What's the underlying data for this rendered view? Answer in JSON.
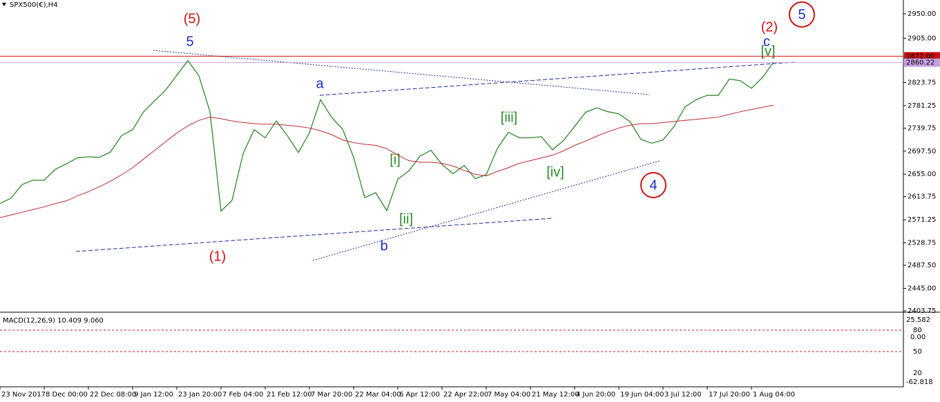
{
  "chart_data": {
    "type": "line",
    "title": "SPX500(€),H4",
    "categories": [
      "23 Nov 2017",
      null,
      null,
      null,
      "8 Dec 00:00",
      null,
      null,
      null,
      "22 Dec 08:00",
      null,
      null,
      null,
      "9 Jan 12:00",
      null,
      null,
      null,
      "23 Jan 20:00",
      null,
      null,
      null,
      "7 Feb 04:00",
      null,
      null,
      null,
      "21 Feb 12:00",
      null,
      null,
      null,
      "7 Mar 20:00",
      null,
      null,
      null,
      "22 Mar 04:00",
      null,
      null,
      null,
      "6 Apr 12:00",
      null,
      null,
      null,
      "22 Apr 22:00",
      null,
      null,
      null,
      "7 May 04:00",
      null,
      null,
      null,
      "21 May 12:00",
      null,
      null,
      null,
      "4 Jun 20:00",
      null,
      null,
      null,
      "19 Jun 04:00",
      null,
      null,
      null,
      "3 Jul 12:00",
      null,
      null,
      null,
      "17 Jul 20:00",
      null,
      null,
      null,
      "1 Aug 04:00",
      null,
      null
    ],
    "series": [
      {
        "name": "SPX500",
        "color": "#2a8a2a",
        "values": [
          2601,
          2611,
          2636,
          2644,
          2644,
          2664,
          2674,
          2685,
          2687,
          2686,
          2696,
          2726,
          2737,
          2770,
          2790,
          2810,
          2837,
          2864,
          2836,
          2770,
          2587,
          2607,
          2693,
          2737,
          2722,
          2753,
          2726,
          2695,
          2731,
          2792,
          2760,
          2738,
          2686,
          2612,
          2621,
          2588,
          2646,
          2661,
          2688,
          2699,
          2673,
          2656,
          2671,
          2647,
          2654,
          2702,
          2732,
          2722,
          2722,
          2724,
          2700,
          2717,
          2743,
          2769,
          2777,
          2770,
          2766,
          2752,
          2719,
          2712,
          2718,
          2743,
          2779,
          2792,
          2800,
          2800,
          2830,
          2827,
          2813,
          2833,
          2861
        ]
      },
      {
        "name": "MA",
        "color": "#c0282d",
        "values": [
          2575,
          2580,
          2585,
          2590,
          2595,
          2601,
          2606,
          2615,
          2623,
          2632,
          2642,
          2654,
          2667,
          2683,
          2699,
          2715,
          2731,
          2744,
          2754,
          2760,
          2757,
          2753,
          2750,
          2748,
          2747,
          2747,
          2745,
          2743,
          2740,
          2735,
          2728,
          2718,
          2713,
          2710,
          2708,
          2702,
          2690,
          2680,
          2677,
          2677,
          2675,
          2670,
          2662,
          2655,
          2652,
          2660,
          2667,
          2675,
          2680,
          2685,
          2690,
          2698,
          2708,
          2716,
          2725,
          2733,
          2740,
          2745,
          2748,
          2748,
          2750,
          2752,
          2754,
          2756,
          2758,
          2760,
          2765,
          2770,
          2774,
          2778,
          2782
        ]
      }
    ],
    "ylim": [
      2403.75,
      2975.4
    ],
    "yticks": [
      {
        "value": 2950,
        "label": "2950.00"
      },
      {
        "value": 2905,
        "label": "2905.00"
      },
      {
        "value": 2823.75,
        "label": "2823.75"
      },
      {
        "value": 2781.25,
        "label": "2781.25"
      },
      {
        "value": 2739.75,
        "label": "2739.75"
      },
      {
        "value": 2697.5,
        "label": "2697.50"
      },
      {
        "value": 2655,
        "label": "2655.00"
      },
      {
        "value": 2613.75,
        "label": "2613.75"
      },
      {
        "value": 2571.25,
        "label": "2571.25"
      },
      {
        "value": 2528.75,
        "label": "2528.75"
      },
      {
        "value": 2487.5,
        "label": "2487.50"
      },
      {
        "value": 2445,
        "label": "2445.00"
      },
      {
        "value": 2403.75,
        "label": "2403.75"
      }
    ],
    "price_lines": [
      {
        "value": 2872,
        "label": "2872.00",
        "color": "#d01010"
      },
      {
        "value": 2860.22,
        "label": "2860.22",
        "color": "#c8a0e0"
      }
    ],
    "annotations": [
      "(5)",
      "5",
      "(1)",
      "a",
      "b",
      "[i]",
      "[ii]",
      "[iii]",
      "[iv]",
      "4",
      "(2)",
      "c",
      "[v]",
      "5"
    ],
    "macd": {
      "label": "MACD(12,26,9) 10.409 9.060",
      "axis_labels": [
        "25.582",
        "80",
        "0.00",
        "50",
        "20",
        "-62.818"
      ]
    }
  }
}
